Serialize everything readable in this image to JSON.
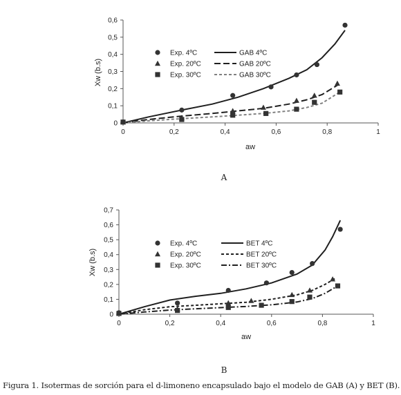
{
  "caption": "Figura 1. Isotermas de sorción para el d-limoneno encapsulado bajo el modelo de GAB (A) y BET (B).",
  "chart_data": [
    {
      "type": "line",
      "panel_label": "A",
      "xlabel": "aw",
      "ylabel": "Xw (b.s)",
      "xlim": [
        0,
        1
      ],
      "ylim": [
        0,
        0.6
      ],
      "xticks": [
        0,
        0.2,
        0.4,
        0.6,
        0.8,
        1
      ],
      "yticks": [
        0,
        0.1,
        0.2,
        0.3,
        0.4,
        0.5,
        0.6
      ],
      "xtick_labels": [
        "0",
        "0,2",
        "0,4",
        "0,6",
        "0,8",
        "1"
      ],
      "ytick_labels": [
        "0",
        "0,1",
        "0,2",
        "0,3",
        "0,4",
        "0,5",
        "0,6"
      ],
      "grid": false,
      "legend_position": "top-left",
      "series": [
        {
          "name": "Exp. 4ºC",
          "kind": "scatter",
          "marker": "circle",
          "color": "#333333",
          "x": [
            0,
            0.23,
            0.43,
            0.58,
            0.68,
            0.76,
            0.87
          ],
          "y": [
            0.005,
            0.075,
            0.16,
            0.21,
            0.28,
            0.34,
            0.57
          ]
        },
        {
          "name": "Exp. 20ºC",
          "kind": "scatter",
          "marker": "triangle",
          "color": "#333333",
          "x": [
            0,
            0.23,
            0.43,
            0.55,
            0.68,
            0.75,
            0.84
          ],
          "y": [
            0.005,
            0.03,
            0.07,
            0.09,
            0.13,
            0.16,
            0.23
          ]
        },
        {
          "name": "Exp. 30ºC",
          "kind": "scatter",
          "marker": "square",
          "color": "#333333",
          "x": [
            0,
            0.23,
            0.43,
            0.56,
            0.68,
            0.75,
            0.85
          ],
          "y": [
            0.005,
            0.02,
            0.045,
            0.055,
            0.08,
            0.12,
            0.18
          ]
        },
        {
          "name": "GAB 4ºC",
          "kind": "line",
          "dash": "solid",
          "color": "#1f1f1f",
          "x": [
            0,
            0.1,
            0.23,
            0.35,
            0.45,
            0.55,
            0.65,
            0.72,
            0.78,
            0.83,
            0.87
          ],
          "y": [
            0,
            0.035,
            0.075,
            0.11,
            0.15,
            0.2,
            0.26,
            0.31,
            0.38,
            0.46,
            0.54
          ]
        },
        {
          "name": "GAB 20ºC",
          "kind": "line",
          "dash": "long-dash",
          "color": "#1f1f1f",
          "x": [
            0,
            0.1,
            0.23,
            0.35,
            0.45,
            0.55,
            0.65,
            0.72,
            0.78,
            0.84
          ],
          "y": [
            0,
            0.02,
            0.04,
            0.055,
            0.07,
            0.085,
            0.11,
            0.135,
            0.165,
            0.22
          ]
        },
        {
          "name": "GAB 30ºC",
          "kind": "line",
          "dash": "short-dash",
          "color": "#808080",
          "x": [
            0,
            0.1,
            0.23,
            0.35,
            0.45,
            0.55,
            0.65,
            0.72,
            0.78,
            0.85
          ],
          "y": [
            0,
            0.012,
            0.025,
            0.035,
            0.045,
            0.055,
            0.07,
            0.09,
            0.115,
            0.18
          ]
        }
      ]
    },
    {
      "type": "line",
      "panel_label": "B",
      "xlabel": "aw",
      "ylabel": "Xw (b.s)",
      "xlim": [
        0,
        1
      ],
      "ylim": [
        0,
        0.7
      ],
      "xticks": [
        0,
        0.2,
        0.4,
        0.6,
        0.8,
        1
      ],
      "yticks": [
        0,
        0.1,
        0.2,
        0.3,
        0.4,
        0.5,
        0.6,
        0.7
      ],
      "xtick_labels": [
        "0",
        "0,2",
        "0,4",
        "0,6",
        "0,8",
        "1"
      ],
      "ytick_labels": [
        "0",
        "0,1",
        "0,2",
        "0,3",
        "0,4",
        "0,5",
        "0,6",
        "0,7"
      ],
      "grid": false,
      "legend_position": "top-left",
      "series": [
        {
          "name": "Exp. 4ºC",
          "kind": "scatter",
          "marker": "circle",
          "color": "#333333",
          "x": [
            0,
            0.23,
            0.43,
            0.58,
            0.68,
            0.76,
            0.87
          ],
          "y": [
            0.01,
            0.075,
            0.16,
            0.21,
            0.28,
            0.34,
            0.57
          ]
        },
        {
          "name": "Exp. 20ºC",
          "kind": "scatter",
          "marker": "triangle",
          "color": "#333333",
          "x": [
            0,
            0.23,
            0.43,
            0.52,
            0.68,
            0.75,
            0.84
          ],
          "y": [
            0.005,
            0.035,
            0.075,
            0.09,
            0.13,
            0.16,
            0.235
          ]
        },
        {
          "name": "Exp. 30ºC",
          "kind": "scatter",
          "marker": "square",
          "color": "#333333",
          "x": [
            0,
            0.23,
            0.43,
            0.56,
            0.68,
            0.75,
            0.86
          ],
          "y": [
            0.005,
            0.025,
            0.045,
            0.06,
            0.085,
            0.115,
            0.19
          ]
        },
        {
          "name": "BET 4ºC",
          "kind": "line",
          "dash": "solid",
          "color": "#1f1f1f",
          "x": [
            0,
            0.1,
            0.2,
            0.3,
            0.4,
            0.5,
            0.6,
            0.7,
            0.76,
            0.81,
            0.84,
            0.87
          ],
          "y": [
            0,
            0.05,
            0.095,
            0.12,
            0.14,
            0.17,
            0.21,
            0.27,
            0.33,
            0.43,
            0.52,
            0.63
          ]
        },
        {
          "name": "BET 20ºC",
          "kind": "line",
          "dash": "short-dash",
          "color": "#1f1f1f",
          "x": [
            0,
            0.1,
            0.2,
            0.3,
            0.4,
            0.5,
            0.6,
            0.7,
            0.76,
            0.81,
            0.85
          ],
          "y": [
            0,
            0.03,
            0.05,
            0.06,
            0.07,
            0.08,
            0.1,
            0.13,
            0.16,
            0.2,
            0.24
          ]
        },
        {
          "name": "BET 30ºC",
          "kind": "line",
          "dash": "dash-dot",
          "color": "#1f1f1f",
          "x": [
            0,
            0.1,
            0.2,
            0.3,
            0.4,
            0.5,
            0.6,
            0.7,
            0.76,
            0.81,
            0.86
          ],
          "y": [
            0,
            0.015,
            0.028,
            0.036,
            0.044,
            0.052,
            0.063,
            0.082,
            0.105,
            0.14,
            0.19
          ]
        }
      ]
    }
  ]
}
